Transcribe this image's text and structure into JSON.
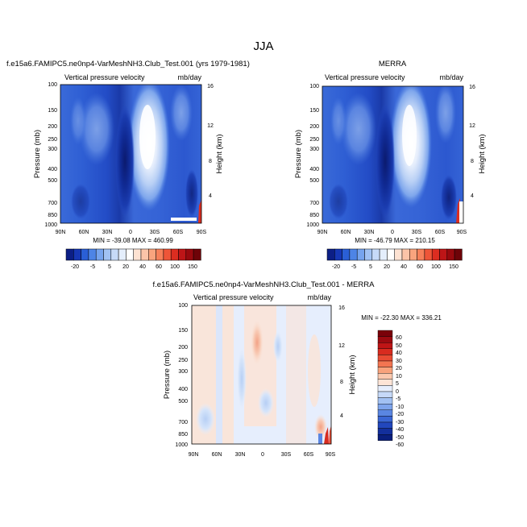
{
  "figure": {
    "title": "JJA"
  },
  "colors": {
    "pos_scale": [
      "#ffffff",
      "#fde2d2",
      "#fbc4a8",
      "#f9a47e",
      "#f6805a",
      "#ee5538",
      "#dc2d20",
      "#bd1517",
      "#98090e",
      "#6e0308"
    ],
    "neg_scale": [
      "#0c1f86",
      "#1637b5",
      "#2a5fd6",
      "#4d84e6",
      "#76a4ee",
      "#a1c2f3",
      "#c6daf8",
      "#e4eefc"
    ],
    "diff_pos": [
      "#fde4d6",
      "#fbc8ae",
      "#f8a27c",
      "#f37551",
      "#e84b33",
      "#d82b1f",
      "#bf1516",
      "#9c0a10",
      "#7a0109"
    ],
    "diff_neg": [
      "#e6eefd",
      "#c6d9f8",
      "#a2c1f3",
      "#7ea4ec",
      "#5a86e2",
      "#3a66d4",
      "#2247bd",
      "#132f9c",
      "#0a1f7e"
    ]
  },
  "chart_data": [
    {
      "type": "heatmap",
      "title": "f.e15a6.FAMIPC5.ne0np4-VarMeshNH3.Club_Test.001 (yrs 1979-1981)",
      "subtitle_left": "Vertical pressure velocity",
      "subtitle_right": "mb/day",
      "xlabel": "",
      "ylabel": "Pressure (mb)",
      "ylabel_right": "Height (km)",
      "x_ticks": [
        "90N",
        "60N",
        "30N",
        "0",
        "30S",
        "60S",
        "90S"
      ],
      "y_ticks": [
        "100",
        "150",
        "200",
        "250",
        "300",
        "400",
        "500",
        "700",
        "850",
        "1000"
      ],
      "y_right_ticks": [
        "16",
        "12",
        "8",
        "4"
      ],
      "ylim": [
        1000,
        100
      ],
      "stats": "MIN = -39.08  MAX = 460.99",
      "colorbar_labels": [
        "-20",
        "-5",
        "5",
        "20",
        "40",
        "60",
        "100",
        "150"
      ]
    },
    {
      "type": "heatmap",
      "title": "MERRA",
      "subtitle_left": "Vertical pressure velocity",
      "subtitle_right": "mb/day",
      "ylabel": "Pressure (mb)",
      "ylabel_right": "Height (km)",
      "x_ticks": [
        "90N",
        "60N",
        "30N",
        "0",
        "30S",
        "60S",
        "90S"
      ],
      "y_ticks": [
        "100",
        "150",
        "200",
        "250",
        "300",
        "400",
        "500",
        "700",
        "850",
        "1000"
      ],
      "y_right_ticks": [
        "16",
        "12",
        "8",
        "4"
      ],
      "ylim": [
        1000,
        100
      ],
      "stats": "MIN = -46.79  MAX = 210.15",
      "colorbar_labels": [
        "-20",
        "-5",
        "5",
        "20",
        "40",
        "60",
        "100",
        "150"
      ]
    },
    {
      "type": "heatmap",
      "title": "f.e15a6.FAMIPC5.ne0np4-VarMeshNH3.Club_Test.001 - MERRA",
      "subtitle_left": "Vertical pressure velocity",
      "subtitle_right": "mb/day",
      "ylabel": "Pressure (mb)",
      "ylabel_right": "Height (km)",
      "x_ticks": [
        "90N",
        "60N",
        "30N",
        "0",
        "30S",
        "60S",
        "90S"
      ],
      "y_ticks": [
        "100",
        "150",
        "200",
        "250",
        "300",
        "400",
        "500",
        "700",
        "850",
        "1000"
      ],
      "y_right_ticks": [
        "16",
        "12",
        "8",
        "4"
      ],
      "ylim": [
        1000,
        100
      ],
      "stats": "MIN = -22.30  MAX = 336.21",
      "colorbar_labels": [
        "60",
        "50",
        "40",
        "30",
        "20",
        "10",
        "5",
        "0",
        "-5",
        "-10",
        "-20",
        "-30",
        "-40",
        "-50",
        "-60"
      ]
    }
  ]
}
